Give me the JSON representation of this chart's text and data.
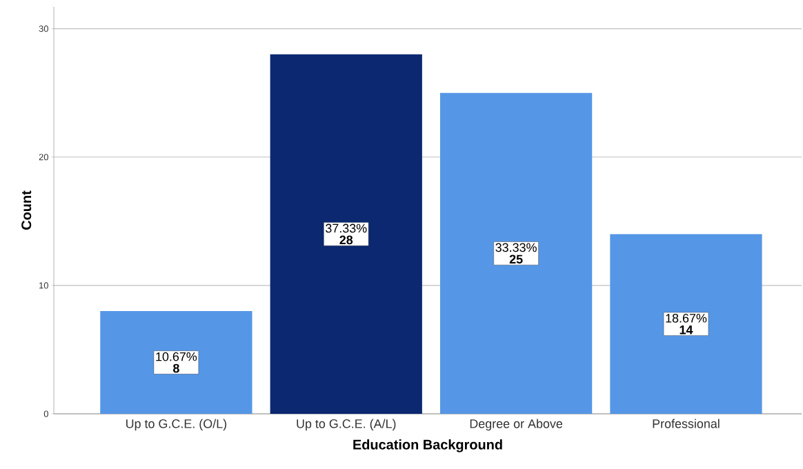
{
  "chart_data": {
    "type": "bar",
    "xlabel": "Education Background",
    "ylabel": "Count",
    "categories": [
      "Up to G.C.E. (O/L)",
      "Up to G.C.E. (A/L)",
      "Degree or Above",
      "Professional"
    ],
    "values": [
      8,
      28,
      25,
      14
    ],
    "colors": [
      "#5596e6",
      "#0b2870",
      "#5596e6",
      "#5596e6"
    ],
    "data_labels": true,
    "annotations": [
      "10.67%",
      "37.33%",
      "33.33%",
      "18.67%"
    ],
    "ylim": [
      0,
      31.7
    ],
    "yticks": [
      0,
      10,
      20,
      30
    ],
    "grid": "y"
  }
}
